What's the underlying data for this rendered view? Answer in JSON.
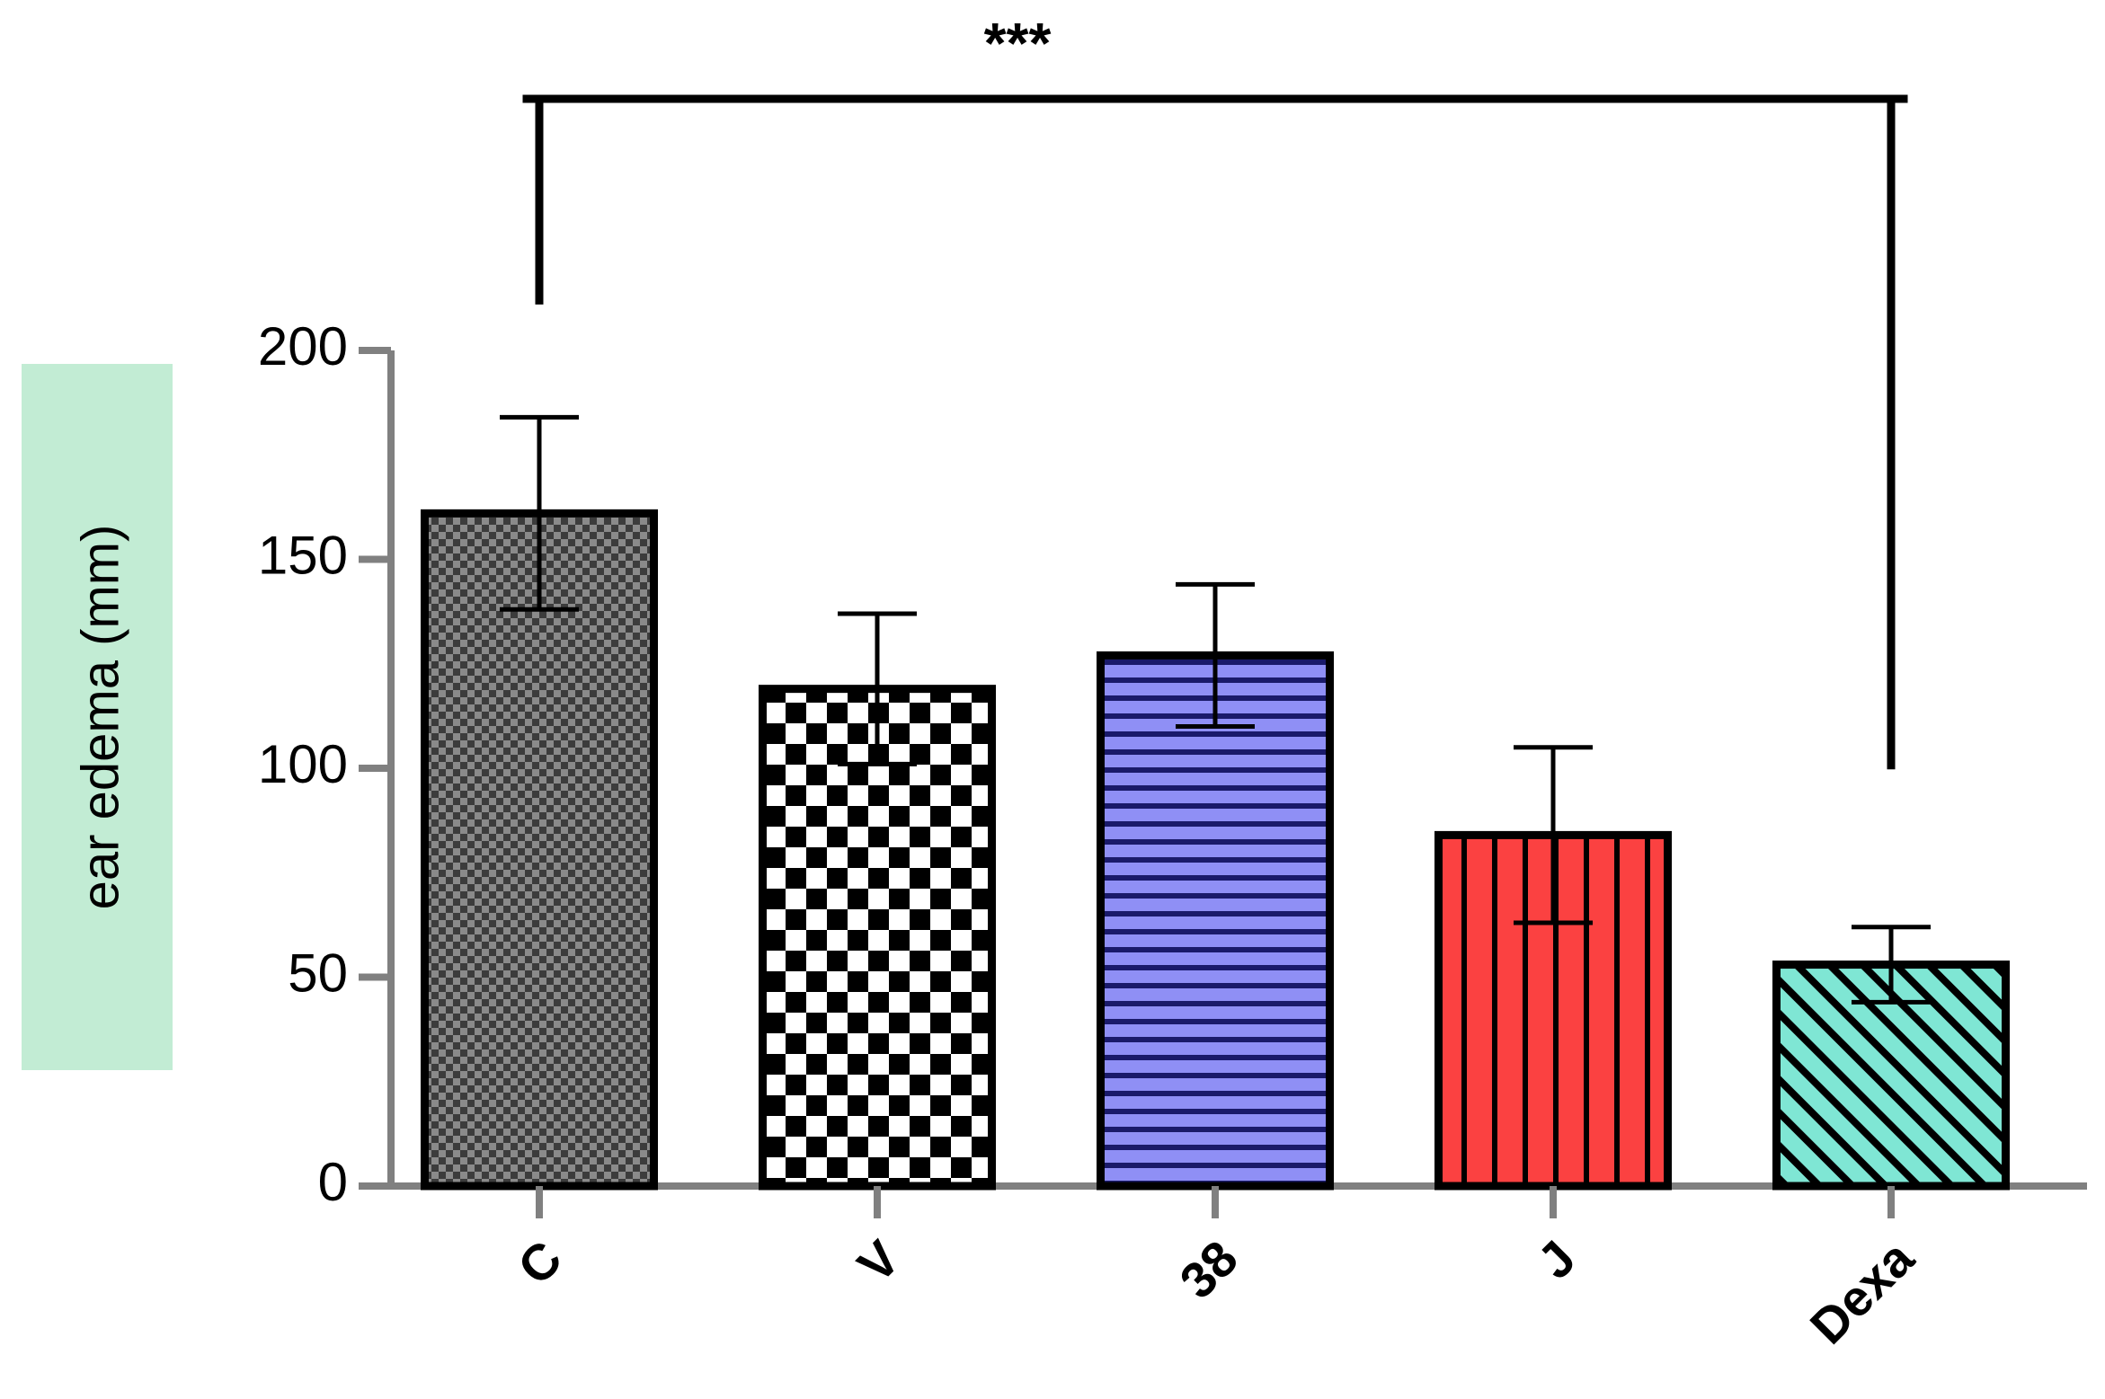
{
  "chart_data": {
    "type": "bar",
    "title": "",
    "xlabel": "",
    "ylabel": "ear edema (mm)",
    "ylim": [
      0,
      200
    ],
    "yticks": [
      0,
      50,
      100,
      150,
      200
    ],
    "grid": false,
    "legend": "none",
    "categories": [
      "C",
      "V",
      "38",
      "J",
      "Dexa"
    ],
    "values": [
      161,
      119,
      127,
      84,
      53
    ],
    "errors": [
      23,
      18,
      17,
      21,
      9
    ],
    "patterns": [
      "dense-checker",
      "checker",
      "horizontal-stripes",
      "vertical-stripes",
      "diagonal-stripes"
    ],
    "colors": {
      "C": "#6e6e6e",
      "V": "#000000",
      "38": "#8f8ff5",
      "J": "#fb4141",
      "Dexa": "#7fe6d4",
      "ylabel_bg": "#c2ecd4",
      "axis": "#808080"
    },
    "annotation": {
      "text": "***",
      "from": "C",
      "to": "Dexa"
    }
  }
}
